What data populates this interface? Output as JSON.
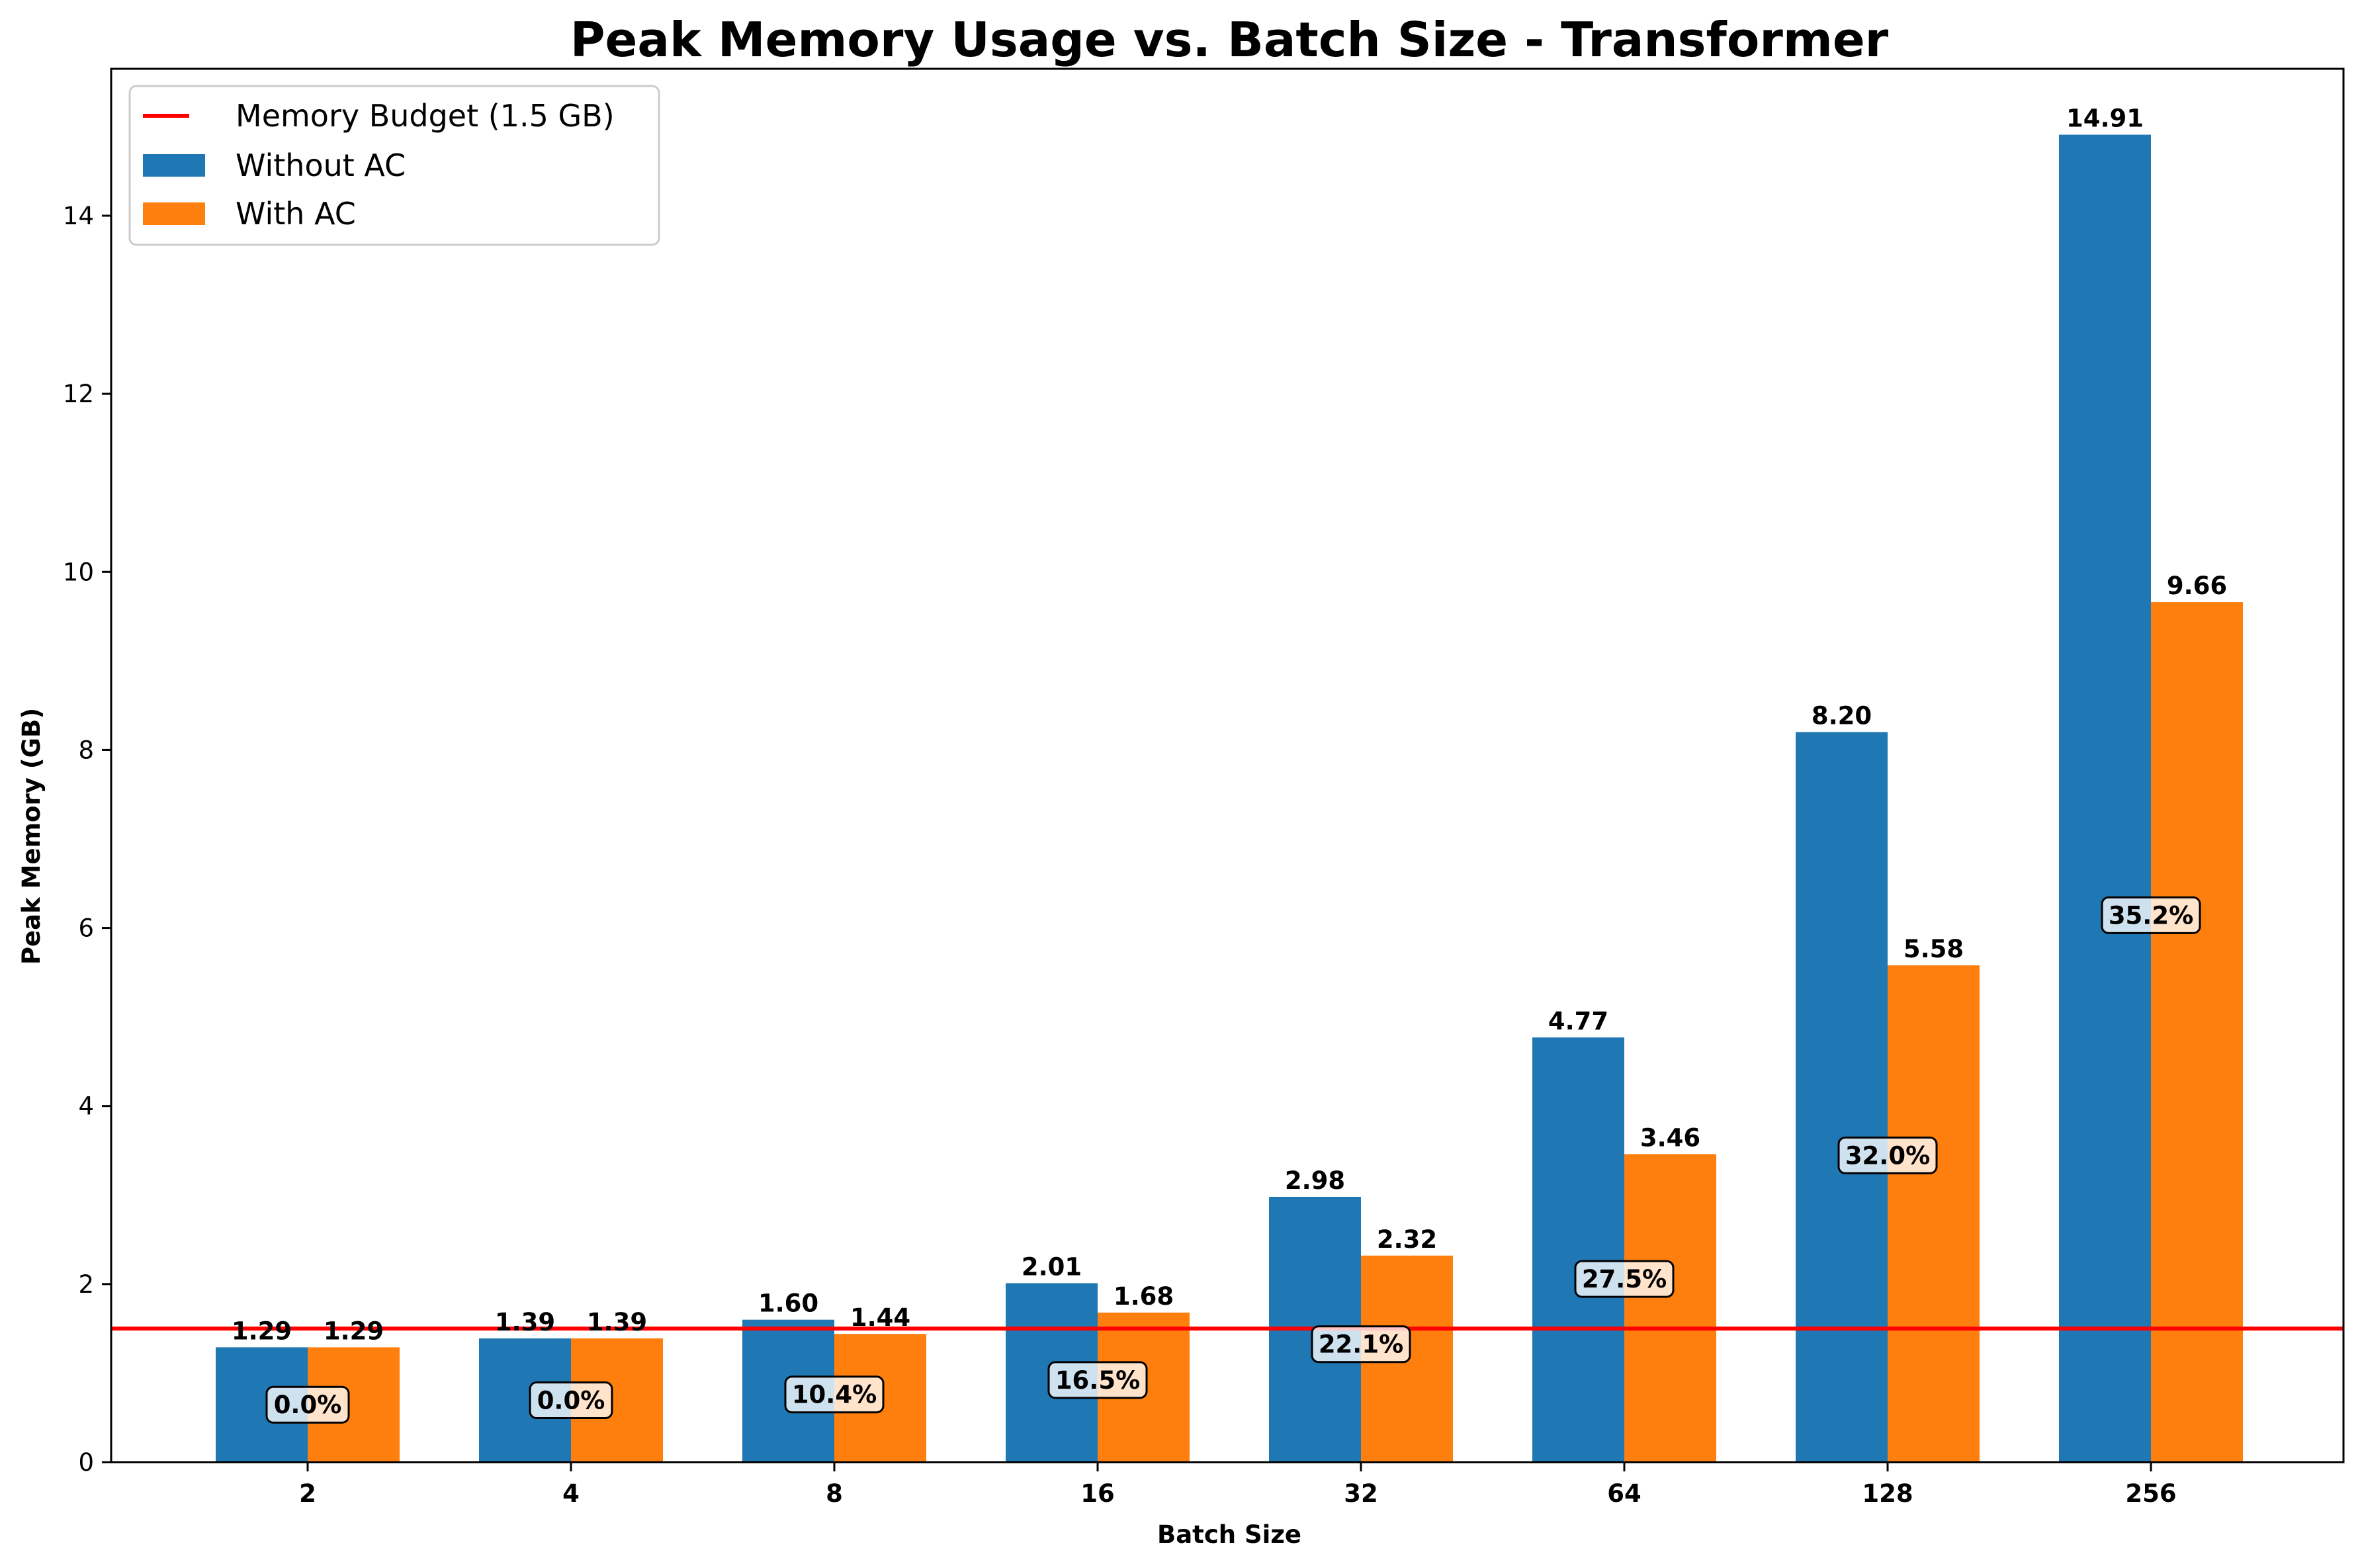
{
  "chart_data": {
    "type": "bar",
    "title": "Peak Memory Usage vs. Batch Size - Transformer",
    "xlabel": "Batch Size",
    "ylabel": "Peak Memory (GB)",
    "categories": [
      "2",
      "4",
      "8",
      "16",
      "32",
      "64",
      "128",
      "256"
    ],
    "ylim": [
      0,
      15.65
    ],
    "yticks": [
      0,
      2,
      4,
      6,
      8,
      10,
      12,
      14
    ],
    "grid": false,
    "legend_position": "top-left",
    "series": [
      {
        "name": "Without AC",
        "color": "#1f77b4",
        "values": [
          1.29,
          1.39,
          1.6,
          2.01,
          2.98,
          4.77,
          8.2,
          14.91
        ],
        "labels": [
          "1.29",
          "1.39",
          "1.60",
          "2.01",
          "2.98",
          "4.77",
          "8.20",
          "14.91"
        ]
      },
      {
        "name": "With AC",
        "color": "#ff7f0e",
        "values": [
          1.29,
          1.39,
          1.44,
          1.68,
          2.32,
          3.46,
          5.58,
          9.66
        ],
        "labels": [
          "1.29",
          "1.39",
          "1.44",
          "1.68",
          "2.32",
          "3.46",
          "5.58",
          "9.66"
        ]
      }
    ],
    "reduction_labels": [
      "0.0%",
      "0.0%",
      "10.4%",
      "16.5%",
      "22.1%",
      "27.5%",
      "32.0%",
      "35.2%"
    ],
    "reference_line": {
      "name": "Memory Budget (1.5 GB)",
      "value": 1.5,
      "color": "#ff0000"
    }
  }
}
